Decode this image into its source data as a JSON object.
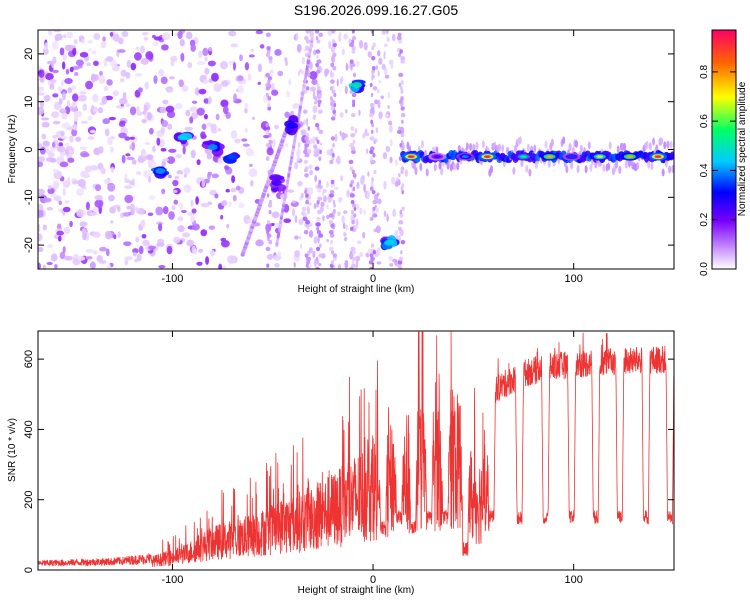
{
  "title": "S196.2026.099.16.27.G05",
  "chart_data": [
    {
      "type": "heatmap",
      "name": "spectrogram",
      "xlabel": "Height of straight line (km)",
      "ylabel": "Frequency (Hz)",
      "xlim": [
        -167,
        150
      ],
      "ylim": [
        -25,
        25
      ],
      "xticks": [
        -100,
        0,
        100
      ],
      "yticks": [
        -20,
        -10,
        0,
        10,
        20
      ],
      "colorbar": {
        "label": "Normalized spectral amplitude",
        "range": [
          0,
          0.97
        ],
        "ticks": [
          "0.0",
          "0.2",
          "0.4",
          "0.6",
          "0.8"
        ],
        "tick_values": [
          0.0,
          0.2,
          0.4,
          0.6,
          0.8
        ],
        "colormap": [
          "#ffffff",
          "#cc99ff",
          "#7b00ff",
          "#0000ff",
          "#00ccff",
          "#00ff66",
          "#ffff00",
          "#ff6600",
          "#ff0066"
        ]
      },
      "features": {
        "main_track": {
          "x_range": [
            15,
            150
          ],
          "frequency": -1.5,
          "peaks": [
            {
              "x": 19,
              "amp": 0.95
            },
            {
              "x": 32,
              "amp": 0.3
            },
            {
              "x": 46,
              "amp": 0.45
            },
            {
              "x": 57,
              "amp": 0.95
            },
            {
              "x": 75,
              "amp": 0.6
            },
            {
              "x": 88,
              "amp": 0.8
            },
            {
              "x": 99,
              "amp": 0.4
            },
            {
              "x": 113,
              "amp": 0.7
            },
            {
              "x": 128,
              "amp": 0.8
            },
            {
              "x": 142,
              "amp": 0.95
            }
          ]
        },
        "blobs": [
          {
            "x": 8,
            "y": -19.5,
            "w": 6,
            "h": 1.5,
            "amp": 0.5
          },
          {
            "x": -8,
            "y": 13.5,
            "w": 3,
            "h": 1.5,
            "amp": 0.55
          },
          {
            "x": -95,
            "y": 2.5,
            "w": 5,
            "h": 1.5,
            "amp": 0.5
          },
          {
            "x": -106,
            "y": -4.5,
            "w": 3,
            "h": 1.5,
            "amp": 0.45
          },
          {
            "x": -80,
            "y": 0.5,
            "w": 8,
            "h": 2,
            "amp": 0.45
          },
          {
            "x": -70,
            "y": -1.5,
            "w": 4,
            "h": 1.5,
            "amp": 0.4
          },
          {
            "x": -40,
            "y": 5,
            "w": 4,
            "h": 3,
            "amp": 0.35
          },
          {
            "x": -48,
            "y": -7,
            "w": 3,
            "h": 3,
            "amp": 0.3
          }
        ]
      }
    },
    {
      "type": "line",
      "name": "snr",
      "xlabel": "Height of straight line (km)",
      "ylabel": "SNR (10 * v/v)",
      "xlim": [
        -167,
        150
      ],
      "ylim": [
        0,
        680
      ],
      "xticks": [
        -100,
        0,
        100
      ],
      "yticks": [
        0,
        200,
        400,
        600
      ],
      "color": "#ee3333",
      "envelope": [
        {
          "x": -167,
          "y": 20
        },
        {
          "x": -130,
          "y": 25
        },
        {
          "x": -110,
          "y": 35
        },
        {
          "x": -95,
          "y": 60
        },
        {
          "x": -80,
          "y": 110
        },
        {
          "x": -60,
          "y": 140
        },
        {
          "x": -45,
          "y": 180
        },
        {
          "x": -30,
          "y": 210
        },
        {
          "x": -15,
          "y": 260
        },
        {
          "x": 0,
          "y": 330
        },
        {
          "x": 15,
          "y": 380
        },
        {
          "x": 30,
          "y": 430
        },
        {
          "x": 40,
          "y": 450
        },
        {
          "x": 45,
          "y": 420
        },
        {
          "x": 50,
          "y": 270
        },
        {
          "x": 55,
          "y": 290
        },
        {
          "x": 60,
          "y": 510
        },
        {
          "x": 75,
          "y": 560
        },
        {
          "x": 90,
          "y": 580
        },
        {
          "x": 110,
          "y": 590
        },
        {
          "x": 130,
          "y": 595
        },
        {
          "x": 150,
          "y": 600
        }
      ],
      "dips": [
        {
          "x": 5,
          "y": 100
        },
        {
          "x": 13,
          "y": 130
        },
        {
          "x": 20,
          "y": 100
        },
        {
          "x": 28,
          "y": 130
        },
        {
          "x": 36,
          "y": 130
        },
        {
          "x": 46,
          "y": 40
        },
        {
          "x": 59,
          "y": 130
        },
        {
          "x": 73,
          "y": 130
        },
        {
          "x": 86,
          "y": 130
        },
        {
          "x": 99,
          "y": 130
        },
        {
          "x": 111,
          "y": 130
        },
        {
          "x": 123,
          "y": 130
        },
        {
          "x": 136,
          "y": 130
        },
        {
          "x": 148,
          "y": 130
        }
      ]
    }
  ]
}
